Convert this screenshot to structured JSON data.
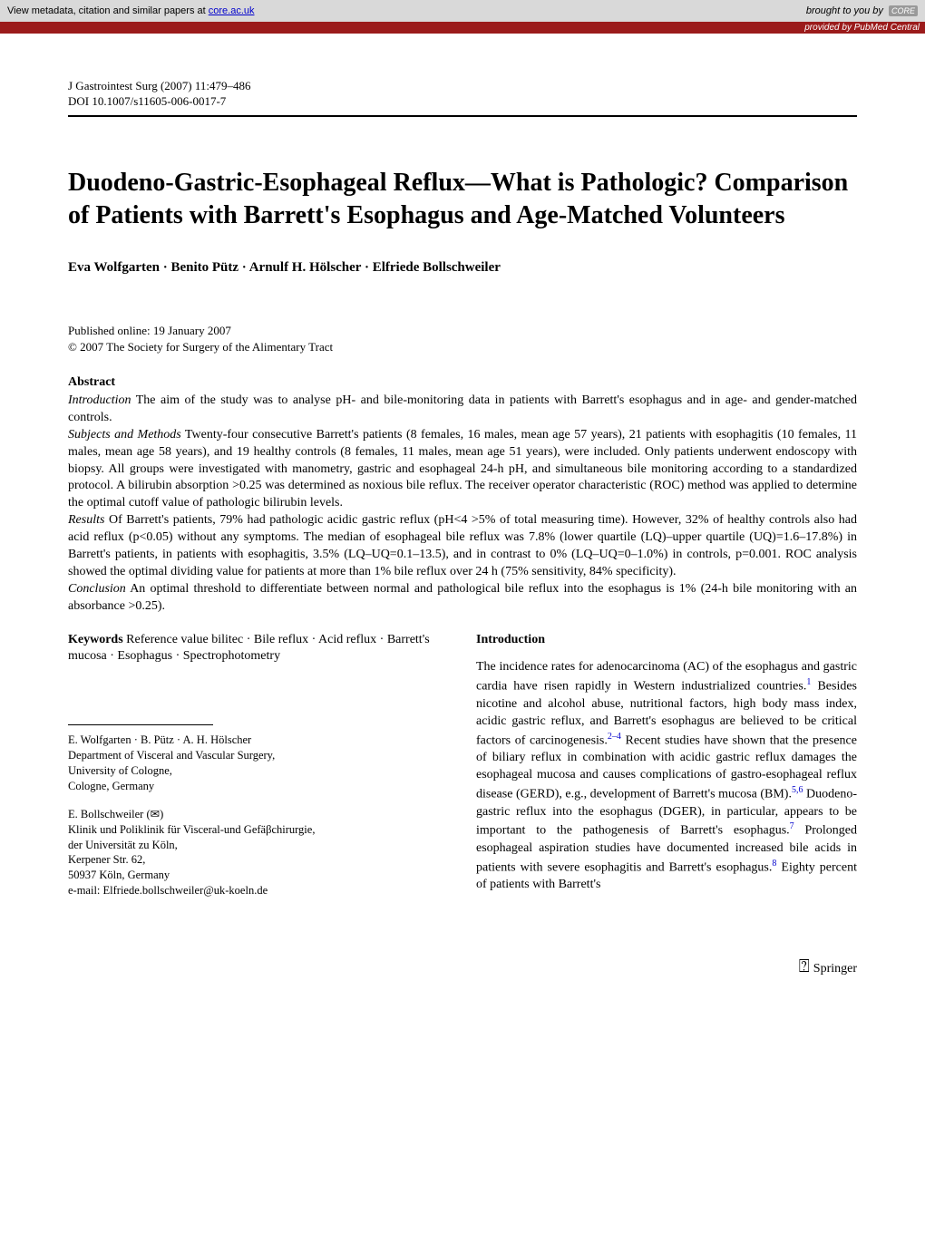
{
  "banner": {
    "left_prefix": "View metadata, citation and similar papers at ",
    "left_link": "core.ac.uk",
    "right_text": "brought to you by",
    "core_tag": "CORE"
  },
  "provided_by": "provided by PubMed Central",
  "journal": {
    "line1": "J Gastrointest Surg (2007) 11:479–486",
    "line2": "DOI 10.1007/s11605-006-0017-7"
  },
  "title": "Duodeno-Gastric-Esophageal Reflux—What is Pathologic? Comparison of Patients with Barrett's Esophagus and Age-Matched Volunteers",
  "authors": "Eva Wolfgarten · Benito Pütz · Arnulf H. Hölscher · Elfriede Bollschweiler",
  "pub": {
    "online": "Published online: 19 January 2007",
    "copyright": "© 2007 The Society for Surgery of the Alimentary Tract"
  },
  "abstract": {
    "heading": "Abstract",
    "intro_label": "Introduction",
    "intro_text": " The aim of the study was to analyse pH- and bile-monitoring data in patients with Barrett's esophagus and in age- and gender-matched controls.",
    "subjects_label": "Subjects and Methods",
    "subjects_text": " Twenty-four consecutive Barrett's patients (8 females, 16 males, mean age 57 years), 21 patients with esophagitis (10 females, 11 males, mean age 58 years), and 19 healthy controls (8 females, 11 males, mean age 51 years), were included. Only patients underwent endoscopy with biopsy. All groups were investigated with manometry, gastric and esophageal 24-h pH, and simultaneous bile monitoring according to a standardized protocol. A bilirubin absorption >0.25 was determined as noxious bile reflux. The receiver operator characteristic (ROC) method was applied to determine the optimal cutoff value of pathologic bilirubin levels.",
    "results_label": "Results",
    "results_text": " Of Barrett's patients, 79% had pathologic acidic gastric reflux (pH<4 >5% of total measuring time). However, 32% of healthy controls also had acid reflux (p<0.05) without any symptoms. The median of esophageal bile reflux was 7.8% (lower quartile (LQ)–upper quartile (UQ)=1.6–17.8%) in Barrett's patients, in patients with esophagitis, 3.5% (LQ–UQ=0.1–13.5), and in contrast to 0% (LQ–UQ=0–1.0%) in controls, p=0.001. ROC analysis showed the optimal dividing value for patients at more than 1% bile reflux over 24 h (75% sensitivity, 84% specificity).",
    "conclusion_label": "Conclusion",
    "conclusion_text": " An optimal threshold to differentiate between normal and pathological bile reflux into the esophagus is 1% (24-h bile monitoring with an absorbance >0.25)."
  },
  "keywords": {
    "heading": "Keywords",
    "text": " Reference value bilitec · Bile reflux · Acid reflux · Barrett's mucosa · Esophagus · Spectrophotometry"
  },
  "intro": {
    "heading": "Introduction",
    "body_html": "The incidence rates for adenocarcinoma (AC) of the esophagus and gastric cardia have risen rapidly in Western industrialized countries.<sup>1</sup> Besides nicotine and alcohol abuse, nutritional factors, high body mass index, acidic gastric reflux, and Barrett's esophagus are believed to be critical factors of carcinogenesis.<sup>2–4</sup> Recent studies have shown that the presence of biliary reflux in combination with acidic gastric reflux damages the esophageal mucosa and causes complications of gastro-esophageal reflux disease (GERD), e.g., development of Barrett's mucosa (BM).<sup>5,6</sup> Duodeno-gastric reflux into the esophagus (DGER), in particular, appears to be important to the pathogenesis of Barrett's esophagus.<sup>7</sup> Prolonged esophageal aspiration studies have documented increased bile acids in patients with severe esophagitis and Barrett's esophagus.<sup>8</sup> Eighty percent of patients with Barrett's"
  },
  "affil1": {
    "names": "E. Wolfgarten · B. Pütz · A. H. Hölscher",
    "dept": "Department of Visceral and Vascular Surgery,",
    "univ": "University of Cologne,",
    "city": "Cologne, Germany"
  },
  "affil2": {
    "name": "E. Bollschweiler (✉)",
    "dept": "Klinik und Poliklinik für Visceral-und Gefäβchirurgie,",
    "univ": "der Universität zu Köln,",
    "street": "Kerpener Str. 62,",
    "city": "50937 Köln, Germany",
    "email": "e-mail: Elfriede.bollschweiler@uk-koeln.de"
  },
  "footer": {
    "springer": "Springer"
  }
}
